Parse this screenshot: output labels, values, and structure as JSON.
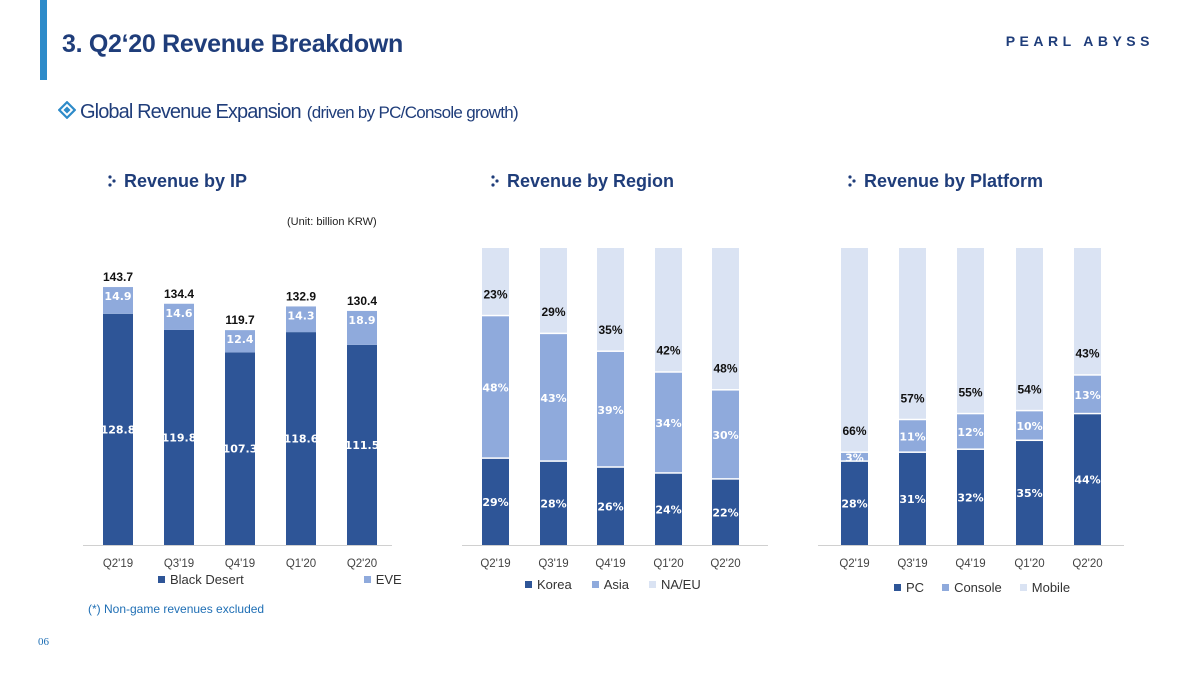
{
  "header": {
    "title": "3. Q2‘20 Revenue Breakdown",
    "brand": "PEARL ABYSS"
  },
  "subtitle": {
    "main": "Global Revenue Expansion",
    "note": "(driven by PC/Console growth)"
  },
  "footnote": "(*) Non-game revenues excluded",
  "page_number": "06",
  "colors": {
    "accent": "#2e8bc9",
    "title": "#1f3d7a",
    "dark_blue": "#2e5597",
    "mid_blue": "#8faadc",
    "light_blue": "#dae3f3"
  },
  "chart_data": [
    {
      "type": "bar",
      "stacked": true,
      "title": "Revenue by IP",
      "unit_note": "(Unit: billion KRW)",
      "categories": [
        "Q2'19",
        "Q3'19",
        "Q4'19",
        "Q1'20",
        "Q2'20"
      ],
      "series": [
        {
          "name": "Black Desert",
          "values": [
            128.8,
            119.8,
            107.3,
            118.6,
            111.5
          ],
          "labels": [
            "128.8",
            "119.8",
            "107.3",
            "118.6",
            "111.5"
          ],
          "color": "#2e5597"
        },
        {
          "name": "EVE",
          "values": [
            14.9,
            14.6,
            12.4,
            14.3,
            18.9
          ],
          "labels": [
            "14.9",
            "14.6",
            "12.4",
            "14.3",
            "18.9"
          ],
          "color": "#8faadc"
        }
      ],
      "totals": [
        "143.7",
        "134.4",
        "119.7",
        "132.9",
        "130.4"
      ],
      "ylim": [
        0,
        150
      ]
    },
    {
      "type": "bar",
      "stacked": true,
      "percent": true,
      "title": "Revenue by Region",
      "categories": [
        "Q2'19",
        "Q3'19",
        "Q4'19",
        "Q1'20",
        "Q2'20"
      ],
      "series": [
        {
          "name": "Korea",
          "values": [
            29,
            28,
            26,
            24,
            22
          ],
          "labels": [
            "29%",
            "28%",
            "26%",
            "24%",
            "22%"
          ],
          "color": "#2e5597"
        },
        {
          "name": "Asia",
          "values": [
            48,
            43,
            39,
            34,
            30
          ],
          "labels": [
            "48%",
            "43%",
            "39%",
            "34%",
            "30%"
          ],
          "color": "#8faadc"
        },
        {
          "name": "NA/EU",
          "values": [
            23,
            29,
            35,
            42,
            48
          ],
          "labels": [
            "23%",
            "29%",
            "35%",
            "42%",
            "48%"
          ],
          "color": "#dae3f3"
        }
      ],
      "ylim": [
        0,
        100
      ]
    },
    {
      "type": "bar",
      "stacked": true,
      "percent": true,
      "title": "Revenue by Platform",
      "categories": [
        "Q2'19",
        "Q3'19",
        "Q4'19",
        "Q1'20",
        "Q2'20"
      ],
      "series": [
        {
          "name": "PC",
          "values": [
            28,
            31,
            32,
            35,
            44
          ],
          "labels": [
            "28%",
            "31%",
            "32%",
            "35%",
            "44%"
          ],
          "color": "#2e5597"
        },
        {
          "name": "Console",
          "values": [
            3,
            11,
            12,
            10,
            13
          ],
          "labels": [
            "3%",
            "11%",
            "12%",
            "10%",
            "13%"
          ],
          "color": "#8faadc"
        },
        {
          "name": "Mobile",
          "values": [
            66,
            57,
            55,
            54,
            43
          ],
          "labels": [
            "66%",
            "57%",
            "55%",
            "54%",
            "43%"
          ],
          "color": "#dae3f3"
        }
      ],
      "ylim": [
        0,
        100
      ]
    }
  ]
}
